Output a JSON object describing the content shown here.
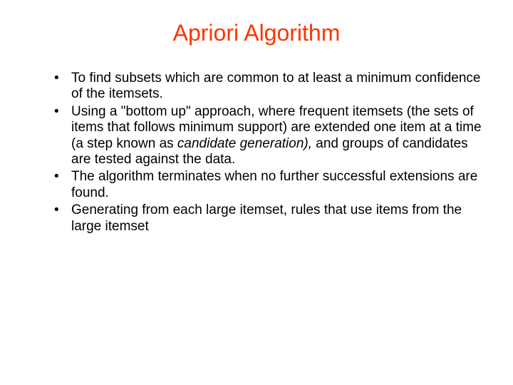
{
  "slide": {
    "title": "Apriori Algorithm",
    "title_color": "#ff3300",
    "body_color": "#000000",
    "background_color": "#ffffff",
    "title_fontsize": 32,
    "body_fontsize": 19,
    "bullets": [
      {
        "text": "To find subsets which are common to at least a minimum confidence of the itemsets."
      },
      {
        "prefix": "Using a \"bottom up\" approach, where frequent itemsets (the sets of items that follows minimum support) are extended one item at a time (a step known as ",
        "italic": "candidate generation),",
        "suffix": " and groups of candidates are tested against the data."
      },
      {
        "text": "The algorithm terminates when no further successful extensions are found."
      },
      {
        "text": "Generating from each large itemset, rules that use items from the large itemset"
      }
    ]
  }
}
